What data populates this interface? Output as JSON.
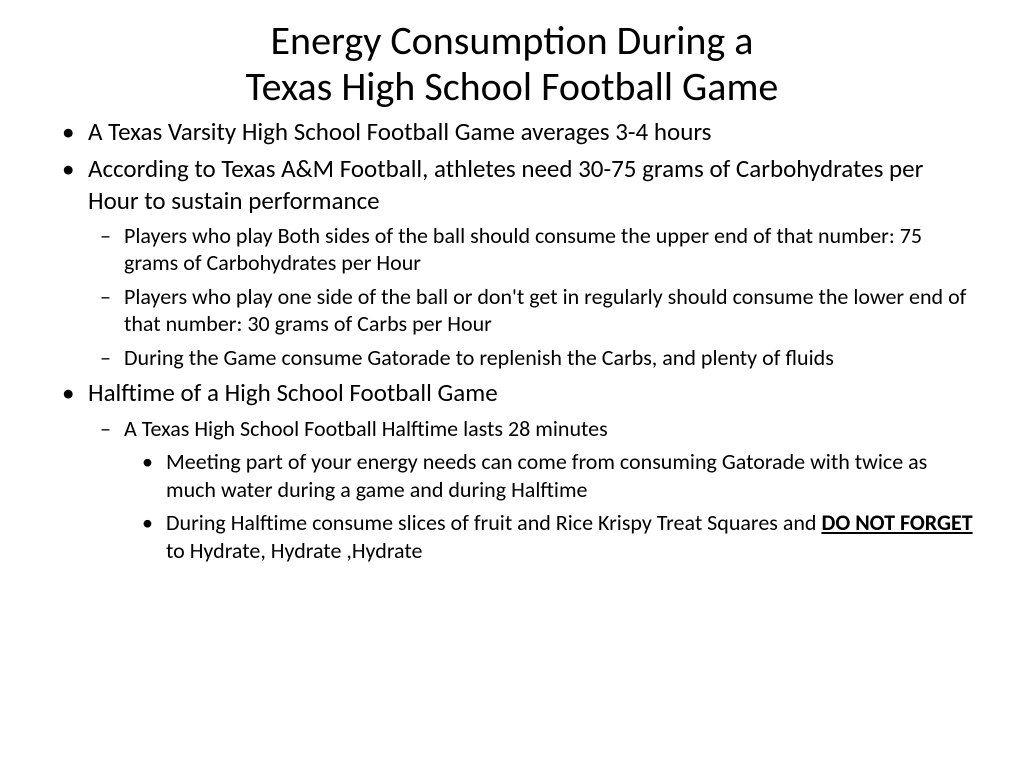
{
  "title_line1": "Energy Consumption During a",
  "title_line2": "Texas High School Football Game",
  "bullets": {
    "b1": "A Texas Varsity High School Football Game averages 3-4 hours",
    "b2": "According to Texas A&M Football, athletes need 30-75 grams of Carbohydrates per Hour to sustain performance",
    "b2_1": "Players who play Both sides of the ball should consume the upper end of that number: 75 grams of Carbohydrates per Hour",
    "b2_2": "Players who play one side of the ball or don't get in regularly should consume the lower end of that number: 30 grams of Carbs per Hour",
    "b2_3": "During the Game consume Gatorade to replenish the Carbs, and plenty of fluids",
    "b3": "Halftime of a High School Football Game",
    "b3_1": "A Texas High School Football Halftime lasts 28 minutes",
    "b3_1_1": "Meeting part of your energy needs can come from consuming Gatorade with twice as much water during a game and during Halftime",
    "b3_1_2a": "During Halftime consume slices of fruit and Rice Krispy Treat Squares and ",
    "b3_1_2_emph": "DO NOT FORGET ",
    "b3_1_2b": "to Hydrate, Hydrate ,Hydrate"
  },
  "style": {
    "background_color": "#ffffff",
    "text_color": "#000000",
    "title_fontsize": 40,
    "lvl1_fontsize": 25,
    "lvl2_fontsize": 22,
    "lvl3_fontsize": 22,
    "font_family": "Calibri",
    "bullet_lvl1": "•",
    "bullet_lvl2": "–",
    "bullet_lvl3": "•"
  }
}
